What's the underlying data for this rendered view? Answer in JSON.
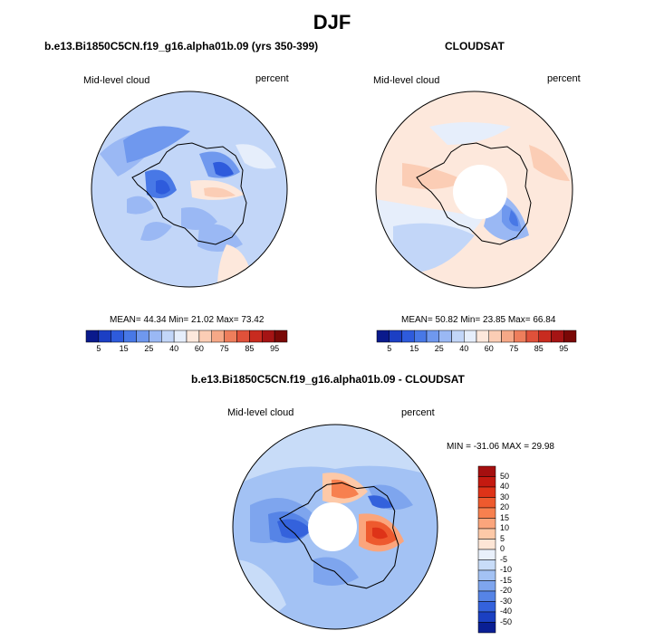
{
  "main_title": "DJF",
  "panels": [
    {
      "title": "b.e13.Bi1850C5CN.f19_g16.alpha01b.09 (yrs 350-399)",
      "left_label": "Mid-level cloud",
      "right_label": "percent",
      "stats": "MEAN=  44.34  Min=  21.02  Max=  73.42"
    },
    {
      "title": "CLOUDSAT",
      "left_label": "Mid-level cloud",
      "right_label": "percent",
      "stats": "MEAN=  50.82  Min=  23.85  Max=  66.84"
    },
    {
      "title": "b.e13.Bi1850C5CN.f19_g16.alpha01b.09 - CLOUDSAT",
      "left_label": "Mid-level cloud",
      "right_label": "percent",
      "stats": "MIN = -31.06 MAX =  29.98"
    }
  ],
  "chart_data": [
    {
      "type": "heatmap",
      "title": "b.e13.Bi1850C5CN.f19_g16.alpha01b.09 (yrs 350-399)",
      "projection": "south polar stereographic",
      "variable": "Mid-level cloud",
      "units": "percent",
      "mean": 44.34,
      "min": 21.02,
      "max": 73.42,
      "colorbar": {
        "orientation": "horizontal",
        "tick_labels": [
          "5",
          "15",
          "25",
          "40",
          "60",
          "75",
          "85",
          "95"
        ],
        "levels": [
          5,
          10,
          15,
          20,
          25,
          30,
          40,
          50,
          60,
          70,
          75,
          80,
          85,
          90,
          95
        ],
        "colors": [
          "#0a1a8c",
          "#1c3fc4",
          "#2e5bdc",
          "#4878e6",
          "#6f98ee",
          "#9ab8f4",
          "#c2d6f8",
          "#e6eefb",
          "#fde8dc",
          "#fbcdb5",
          "#f6a887",
          "#ee7e5c",
          "#e0513a",
          "#c82b1f",
          "#a51414",
          "#7a0806"
        ]
      }
    },
    {
      "type": "heatmap",
      "title": "CLOUDSAT",
      "projection": "south polar stereographic",
      "variable": "Mid-level cloud",
      "units": "percent",
      "mean": 50.82,
      "min": 23.85,
      "max": 66.84,
      "colorbar": {
        "orientation": "horizontal",
        "tick_labels": [
          "5",
          "15",
          "25",
          "40",
          "60",
          "75",
          "85",
          "95"
        ],
        "levels": [
          5,
          10,
          15,
          20,
          25,
          30,
          40,
          50,
          60,
          70,
          75,
          80,
          85,
          90,
          95
        ],
        "colors": [
          "#0a1a8c",
          "#1c3fc4",
          "#2e5bdc",
          "#4878e6",
          "#6f98ee",
          "#9ab8f4",
          "#c2d6f8",
          "#e6eefb",
          "#fde8dc",
          "#fbcdb5",
          "#f6a887",
          "#ee7e5c",
          "#e0513a",
          "#c82b1f",
          "#a51414",
          "#7a0806"
        ]
      }
    },
    {
      "type": "heatmap",
      "title": "b.e13.Bi1850C5CN.f19_g16.alpha01b.09 - CLOUDSAT",
      "projection": "south polar stereographic",
      "variable": "Mid-level cloud",
      "units": "percent",
      "min": -31.06,
      "max": 29.98,
      "colorbar": {
        "orientation": "vertical",
        "tick_labels": [
          "50",
          "40",
          "30",
          "20",
          "15",
          "10",
          "5",
          "0",
          "-5",
          "-10",
          "-15",
          "-20",
          "-30",
          "-40",
          "-50"
        ],
        "colors": [
          "#a50f0f",
          "#c41a10",
          "#de3318",
          "#ee5a2e",
          "#f7804f",
          "#fba57c",
          "#fdc9a8",
          "#fde6d6",
          "#e9f0fb",
          "#c8dcf8",
          "#a3c2f4",
          "#7ea5ee",
          "#5684e6",
          "#3462dc",
          "#1b40c2",
          "#0a1f94"
        ]
      }
    }
  ]
}
